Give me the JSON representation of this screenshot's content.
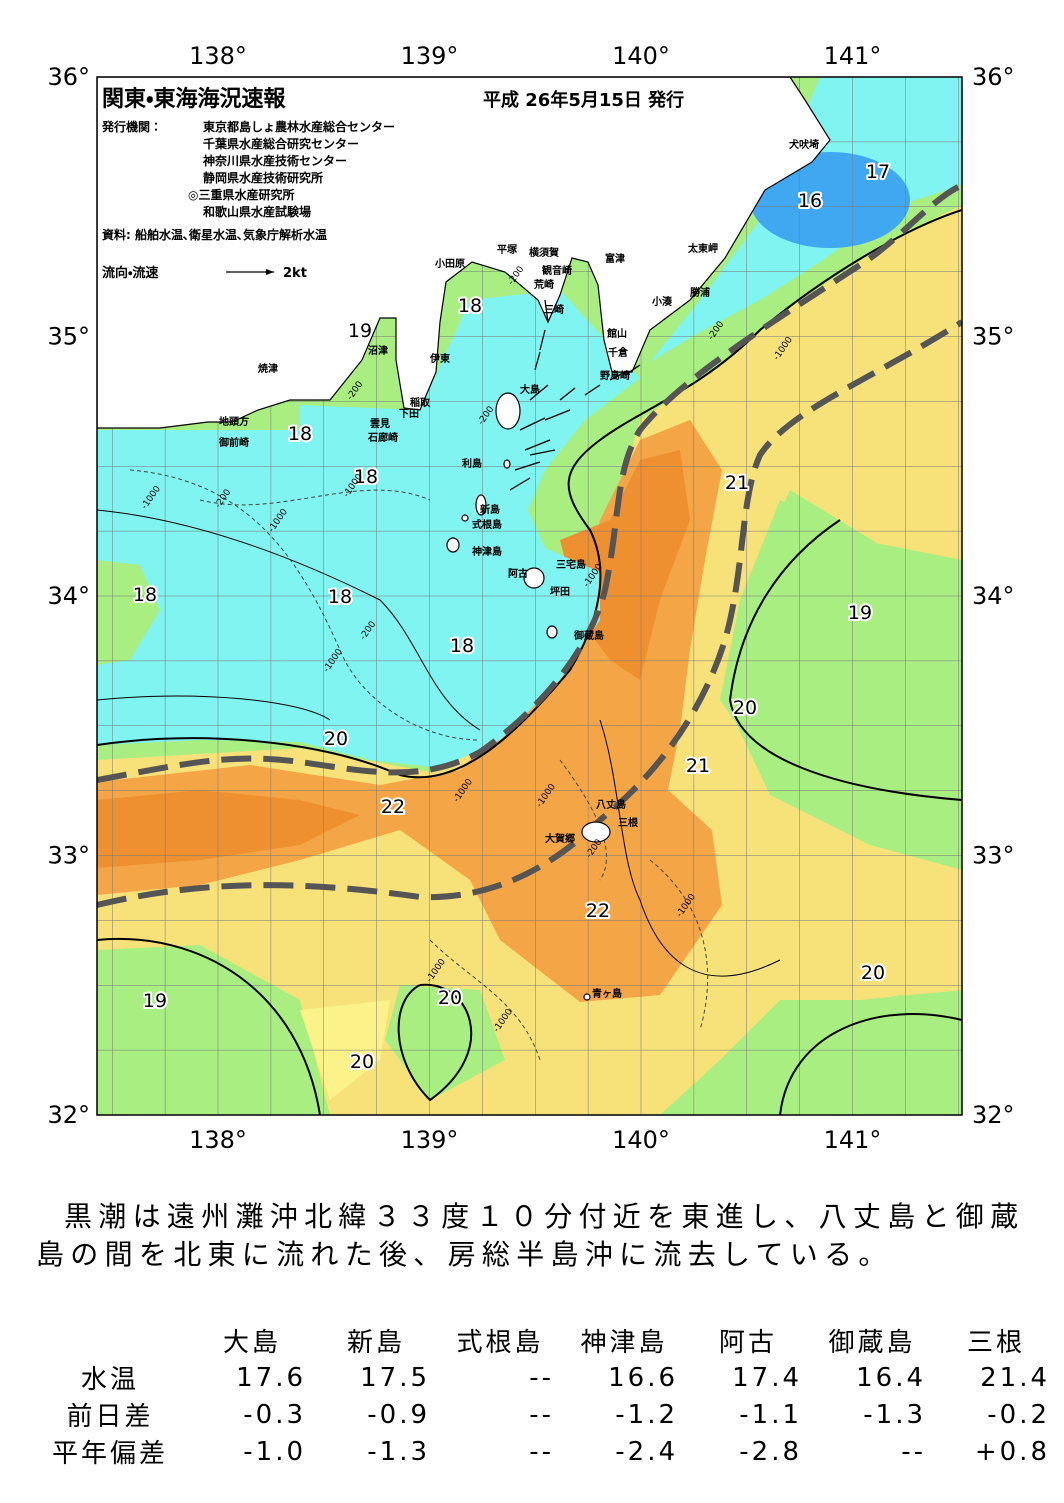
{
  "header": {
    "title": "関東・東海海況速報",
    "date": "平成 26年5月15日 発行",
    "issuer_label": "発行機関：",
    "issuers": [
      "東京都島しょ農林水産総合センター",
      "千葉県水産総合研究センター",
      "神奈川県水産技術センター",
      "静岡県水産技術研究所",
      "◎三重県水産研究所",
      "和歌山県水産試験場"
    ],
    "source": "資料: 船舶水温､衛星水温､気象庁解析水温",
    "legend_label": "流向・流速",
    "legend_scale": "2kt"
  },
  "map": {
    "lon_labels": [
      "138°",
      "139°",
      "140°",
      "141°"
    ],
    "lat_labels": [
      "36°",
      "35°",
      "34°",
      "33°",
      "32°"
    ],
    "place_names": [
      "犬吠埼",
      "太東岬",
      "勝浦",
      "小湊",
      "館山",
      "千倉",
      "野島崎",
      "富津",
      "横須賀",
      "観音崎",
      "荒崎",
      "三崎",
      "平塚",
      "小田原",
      "沼津",
      "伊東",
      "焼津",
      "稲取",
      "下田",
      "雲見",
      "石廊崎",
      "地頭方",
      "御前崎",
      "大島",
      "利島",
      "新島",
      "式根島",
      "神津島",
      "阿古",
      "三宅島",
      "坪田",
      "御蔵島",
      "八丈島",
      "三根",
      "大賀郷",
      "青ヶ島"
    ],
    "temperature_labels": [
      "17",
      "16",
      "19",
      "18",
      "18",
      "18",
      "21",
      "18",
      "18",
      "19",
      "18",
      "20",
      "20",
      "21",
      "22",
      "22",
      "20",
      "19",
      "20",
      "20"
    ],
    "depth_labels": [
      "-200",
      "-200",
      "-1000",
      "-200",
      "-200",
      "-1000",
      "-200",
      "-1000",
      "-1000",
      "-200",
      "-1000",
      "-1000",
      "-1000",
      "-1000",
      "-200",
      "-1000",
      "-1000",
      "-1000"
    ]
  },
  "summary": "黒潮は遠州灘沖北緯３３度１０分付近を東進し、八丈島と御蔵島の間を北東に流れた後、房総半島沖に流去している。",
  "table": {
    "columns": [
      "大島",
      "新島",
      "式根島",
      "神津島",
      "阿古",
      "御蔵島",
      "三根"
    ],
    "rows": [
      {
        "label": "水温",
        "values": [
          "17.6",
          "17.5",
          "--",
          "16.6",
          "17.4",
          "16.4",
          "21.4"
        ]
      },
      {
        "label": "前日差",
        "values": [
          "-0.3",
          "-0.9",
          "--",
          "-1.2",
          "-1.1",
          "-1.3",
          "-0.2"
        ]
      },
      {
        "label": "平年偏差",
        "values": [
          "-1.0",
          "-1.3",
          "--",
          "-2.4",
          "-2.8",
          "--",
          "+0.8"
        ]
      }
    ]
  }
}
